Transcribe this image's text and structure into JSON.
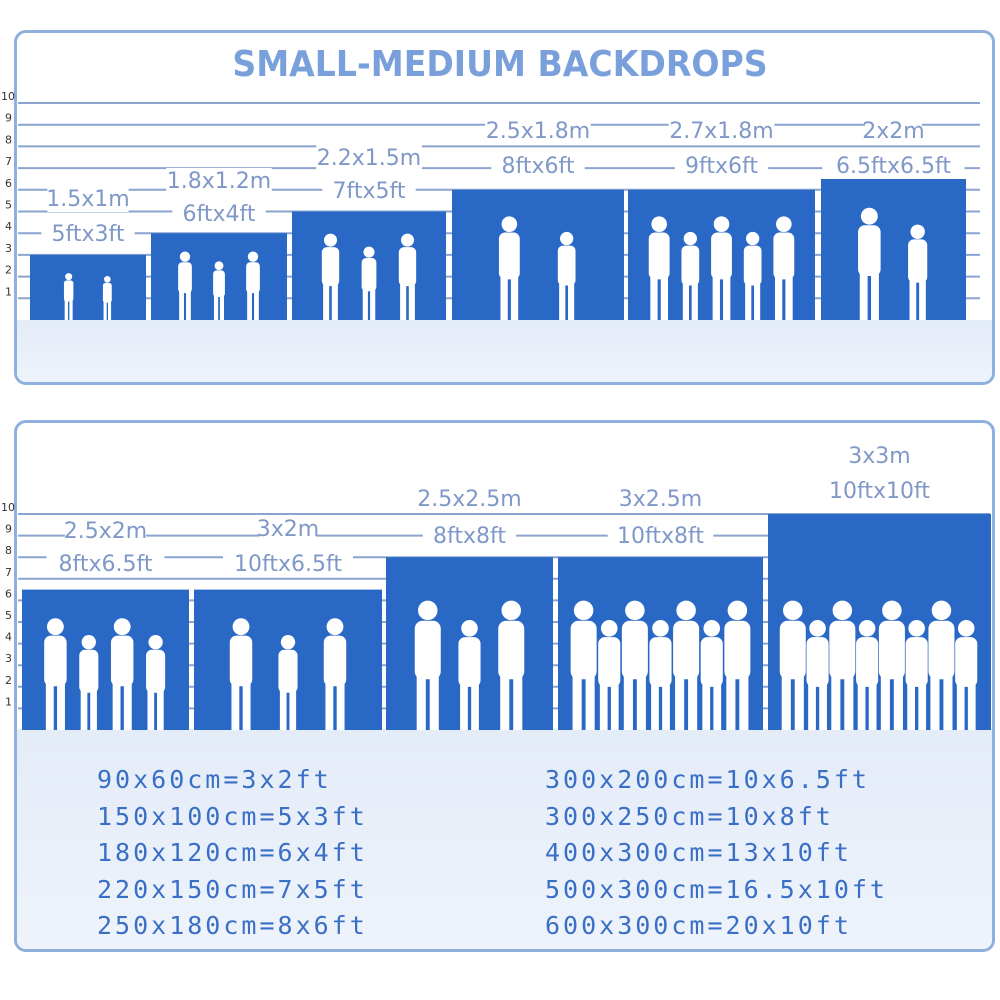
{
  "title": "SMALL-MEDIUM BACKDROPS",
  "scale_ticks": [
    "10",
    "9",
    "8",
    "7",
    "6",
    "5",
    "4",
    "3",
    "2",
    "1"
  ],
  "colors": {
    "bar": "#2a68c6",
    "label": "#7f98c8",
    "grid": "#8aa4cf",
    "title": "#7aa0dc",
    "sizes": "#3a6fc6"
  },
  "top_panel": {
    "backdrops": [
      {
        "metric": "1.5x1m",
        "imperial": "5ftx3ft",
        "height_ft": 3
      },
      {
        "metric": "1.8x1.2m",
        "imperial": "6ftx4ft",
        "height_ft": 4
      },
      {
        "metric": "2.2x1.5m",
        "imperial": "7ftx5ft",
        "height_ft": 5
      },
      {
        "metric": "2.5x1.8m",
        "imperial": "8ftx6ft",
        "height_ft": 6
      },
      {
        "metric": "2.7x1.8m",
        "imperial": "9ftx6ft",
        "height_ft": 6
      },
      {
        "metric": "2x2m",
        "imperial": "6.5ftx6.5ft",
        "height_ft": 6.5
      }
    ]
  },
  "bottom_panel": {
    "backdrops": [
      {
        "metric": "2.5x2m",
        "imperial": "8ftx6.5ft",
        "height_ft": 6.5
      },
      {
        "metric": "3x2m",
        "imperial": "10ftx6.5ft",
        "height_ft": 6.5
      },
      {
        "metric": "2.5x2.5m",
        "imperial": "8ftx8ft",
        "height_ft": 8
      },
      {
        "metric": "3x2.5m",
        "imperial": "10ftx8ft",
        "height_ft": 8
      },
      {
        "metric": "3x3m",
        "imperial": "10ftx10ft",
        "height_ft": 10
      }
    ],
    "size_list_left": [
      "90x60cm=3x2ft",
      "150x100cm=5x3ft",
      "180x120cm=6x4ft",
      "220x150cm=7x5ft",
      "250x180cm=8x6ft"
    ],
    "size_list_right": [
      "300x200cm=10x6.5ft",
      "300x250cm=10x8ft",
      "400x300cm=13x10ft",
      "500x300cm=16.5x10ft",
      "600x300cm=20x10ft"
    ]
  }
}
